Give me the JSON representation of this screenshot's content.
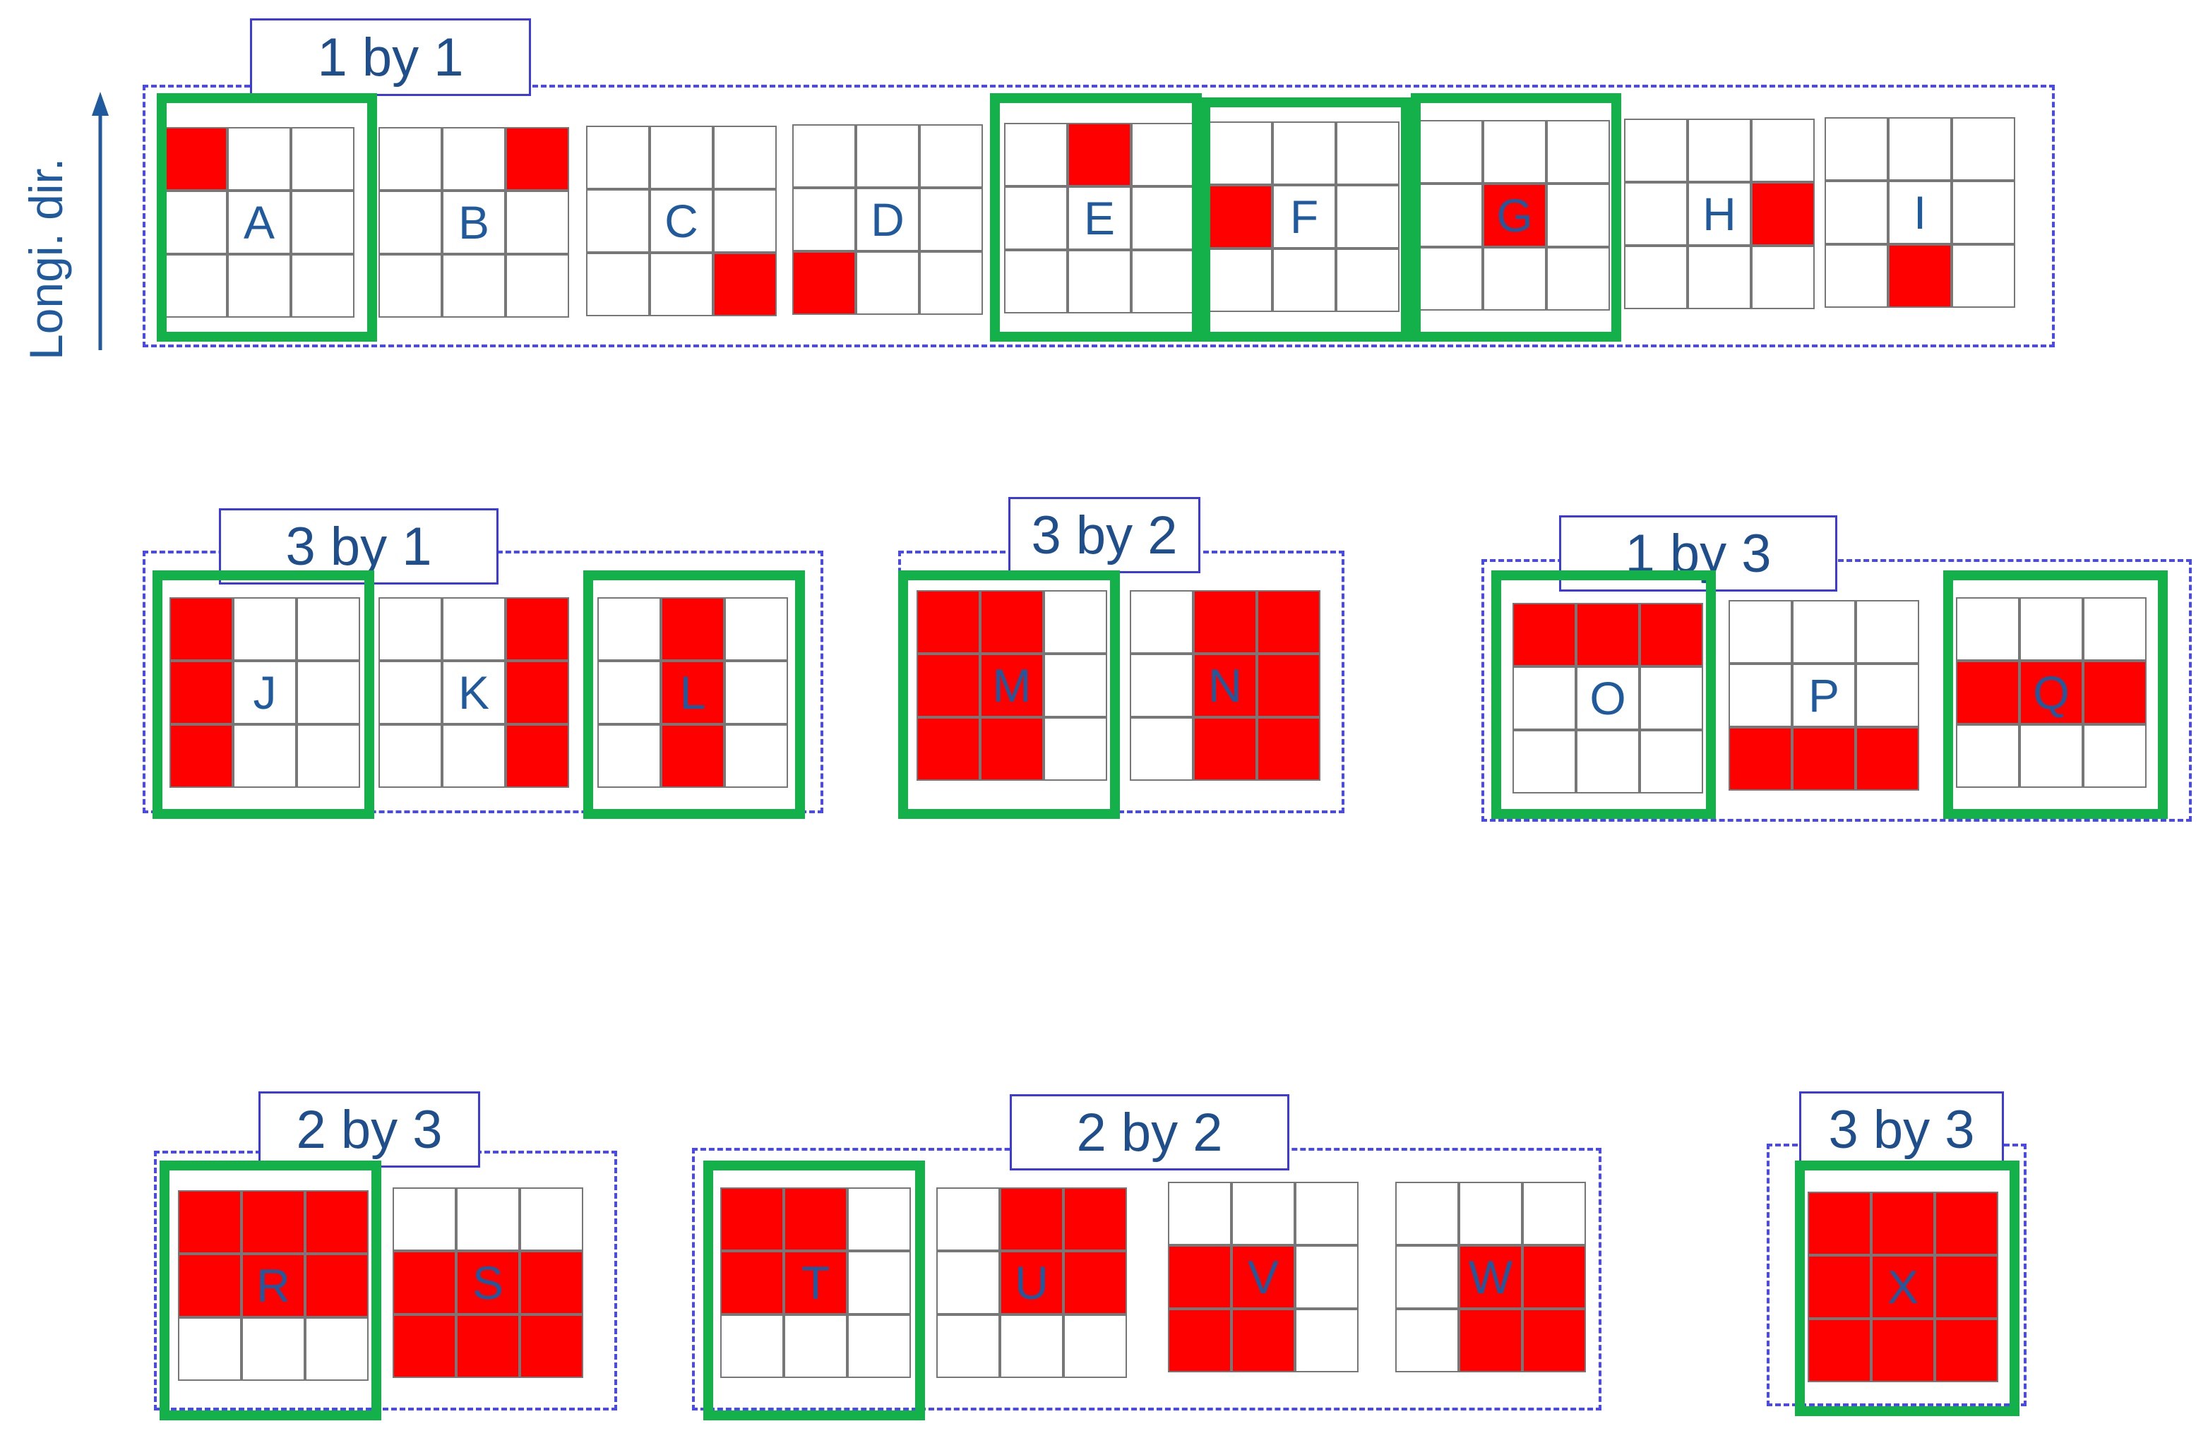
{
  "axis": {
    "label": "Longi. dir.",
    "color": "#1f5a9e"
  },
  "colors": {
    "filled": "#ff0000",
    "highlight": "#14b14b",
    "group_border": "#4a4ae8",
    "text": "#1f5a9e"
  },
  "groups": [
    {
      "id": "1x1",
      "label": "1 by 1"
    },
    {
      "id": "3x1",
      "label": "3 by 1"
    },
    {
      "id": "3x2",
      "label": "3 by 2"
    },
    {
      "id": "1x3",
      "label": "1 by 3"
    },
    {
      "id": "2x3",
      "label": "2 by 3"
    },
    {
      "id": "2x2",
      "label": "2 by 2"
    },
    {
      "id": "3x3",
      "label": "3 by 3"
    }
  ],
  "patterns": [
    {
      "letter": "A",
      "group": "1x1",
      "filled": [
        [
          0,
          0
        ]
      ],
      "highlighted": true
    },
    {
      "letter": "B",
      "group": "1x1",
      "filled": [
        [
          0,
          2
        ]
      ],
      "highlighted": false
    },
    {
      "letter": "C",
      "group": "1x1",
      "filled": [
        [
          2,
          2
        ]
      ],
      "highlighted": false
    },
    {
      "letter": "D",
      "group": "1x1",
      "filled": [
        [
          2,
          0
        ]
      ],
      "highlighted": false
    },
    {
      "letter": "E",
      "group": "1x1",
      "filled": [
        [
          0,
          1
        ]
      ],
      "highlighted": true
    },
    {
      "letter": "F",
      "group": "1x1",
      "filled": [
        [
          1,
          0
        ]
      ],
      "highlighted": true
    },
    {
      "letter": "G",
      "group": "1x1",
      "filled": [
        [
          1,
          1
        ]
      ],
      "highlighted": true
    },
    {
      "letter": "H",
      "group": "1x1",
      "filled": [
        [
          1,
          2
        ]
      ],
      "highlighted": false
    },
    {
      "letter": "I",
      "group": "1x1",
      "filled": [
        [
          2,
          1
        ]
      ],
      "highlighted": false
    },
    {
      "letter": "J",
      "group": "3x1",
      "filled": [
        [
          0,
          0
        ],
        [
          1,
          0
        ],
        [
          2,
          0
        ]
      ],
      "highlighted": true
    },
    {
      "letter": "K",
      "group": "3x1",
      "filled": [
        [
          0,
          2
        ],
        [
          1,
          2
        ],
        [
          2,
          2
        ]
      ],
      "highlighted": false
    },
    {
      "letter": "L",
      "group": "3x1",
      "filled": [
        [
          0,
          1
        ],
        [
          1,
          1
        ],
        [
          2,
          1
        ]
      ],
      "highlighted": true
    },
    {
      "letter": "M",
      "group": "3x2",
      "filled": [
        [
          0,
          0
        ],
        [
          0,
          1
        ],
        [
          1,
          0
        ],
        [
          1,
          1
        ],
        [
          2,
          0
        ],
        [
          2,
          1
        ]
      ],
      "highlighted": true
    },
    {
      "letter": "N",
      "group": "3x2",
      "filled": [
        [
          0,
          1
        ],
        [
          0,
          2
        ],
        [
          1,
          1
        ],
        [
          1,
          2
        ],
        [
          2,
          1
        ],
        [
          2,
          2
        ]
      ],
      "highlighted": false
    },
    {
      "letter": "O",
      "group": "1x3",
      "filled": [
        [
          0,
          0
        ],
        [
          0,
          1
        ],
        [
          0,
          2
        ]
      ],
      "highlighted": true
    },
    {
      "letter": "P",
      "group": "1x3",
      "filled": [
        [
          2,
          0
        ],
        [
          2,
          1
        ],
        [
          2,
          2
        ]
      ],
      "highlighted": false
    },
    {
      "letter": "Q",
      "group": "1x3",
      "filled": [
        [
          1,
          0
        ],
        [
          1,
          1
        ],
        [
          1,
          2
        ]
      ],
      "highlighted": true
    },
    {
      "letter": "R",
      "group": "2x3",
      "filled": [
        [
          0,
          0
        ],
        [
          0,
          1
        ],
        [
          0,
          2
        ],
        [
          1,
          0
        ],
        [
          1,
          1
        ],
        [
          1,
          2
        ]
      ],
      "highlighted": true
    },
    {
      "letter": "S",
      "group": "2x3",
      "filled": [
        [
          1,
          0
        ],
        [
          1,
          1
        ],
        [
          1,
          2
        ],
        [
          2,
          0
        ],
        [
          2,
          1
        ],
        [
          2,
          2
        ]
      ],
      "highlighted": false
    },
    {
      "letter": "T",
      "group": "2x2",
      "filled": [
        [
          0,
          0
        ],
        [
          0,
          1
        ],
        [
          1,
          0
        ],
        [
          1,
          1
        ]
      ],
      "highlighted": true
    },
    {
      "letter": "U",
      "group": "2x2",
      "filled": [
        [
          0,
          1
        ],
        [
          0,
          2
        ],
        [
          1,
          1
        ],
        [
          1,
          2
        ]
      ],
      "highlighted": false
    },
    {
      "letter": "V",
      "group": "2x2",
      "filled": [
        [
          1,
          0
        ],
        [
          1,
          1
        ],
        [
          2,
          0
        ],
        [
          2,
          1
        ]
      ],
      "highlighted": false
    },
    {
      "letter": "W",
      "group": "2x2",
      "filled": [
        [
          1,
          1
        ],
        [
          1,
          2
        ],
        [
          2,
          1
        ],
        [
          2,
          2
        ]
      ],
      "highlighted": false
    },
    {
      "letter": "X",
      "group": "3x3",
      "filled": [
        [
          0,
          0
        ],
        [
          0,
          1
        ],
        [
          0,
          2
        ],
        [
          1,
          0
        ],
        [
          1,
          1
        ],
        [
          1,
          2
        ],
        [
          2,
          0
        ],
        [
          2,
          1
        ],
        [
          2,
          2
        ]
      ],
      "highlighted": true
    }
  ]
}
